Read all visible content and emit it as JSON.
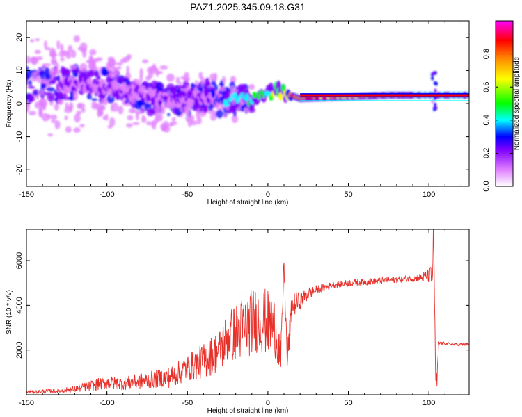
{
  "chart_data": [
    {
      "type": "heatmap",
      "title": "PAZ1.2025.345.09.18.G31",
      "xlabel": "Height of straight line (km)",
      "ylabel": "Frequency (Hz)",
      "xlim": [
        -150,
        125
      ],
      "ylim": [
        -25,
        25
      ],
      "xticks": [
        -150,
        -100,
        -50,
        0,
        50,
        100
      ],
      "yticks": [
        -20,
        -10,
        0,
        10,
        20
      ],
      "colorbar": {
        "label": "Normalized spectral amplitude",
        "range": [
          0,
          1
        ],
        "ticks": [
          "0.0",
          "0.2",
          "0.4",
          "0.6",
          "0.8"
        ],
        "colors": [
          "#ffffff",
          "#e080ff",
          "#8000ff",
          "#0000ff",
          "#00ffff",
          "#00ff00",
          "#ffff00",
          "#ff8000",
          "#ff0000",
          "#ff00ff"
        ]
      },
      "ridge": {
        "description_points": [
          {
            "x": -115,
            "f": 6,
            "amp": 0.25
          },
          {
            "x": -90,
            "f": 4,
            "amp": 0.2
          },
          {
            "x": -60,
            "f": 1,
            "amp": 0.2
          },
          {
            "x": -40,
            "f": 2,
            "amp": 0.25
          },
          {
            "x": -10,
            "f": 1,
            "amp": 0.55
          },
          {
            "x": 5,
            "f": 4,
            "amp": 0.6
          },
          {
            "x": 20,
            "f": 1.5,
            "amp": 0.9
          },
          {
            "x": 50,
            "f": 2,
            "amp": 0.75
          },
          {
            "x": 75,
            "f": 2.5,
            "amp": 0.85
          },
          {
            "x": 100,
            "f": 2.5,
            "amp": 0.95
          },
          {
            "x": 125,
            "f": 2.5,
            "amp": 0.95
          }
        ]
      }
    },
    {
      "type": "line",
      "title": "",
      "xlabel": "Height of straight line (km)",
      "ylabel": "SNR (10 * v/v)",
      "xlim": [
        -150,
        125
      ],
      "ylim": [
        0,
        7400
      ],
      "xticks": [
        -150,
        -100,
        -50,
        0,
        50,
        100
      ],
      "yticks": [
        2000,
        4000,
        6000
      ],
      "series": [
        {
          "name": "SNR",
          "color": "#e8302a",
          "x": [
            -150,
            -140,
            -130,
            -120,
            -110,
            -100,
            -90,
            -80,
            -70,
            -60,
            -50,
            -40,
            -30,
            -25,
            -20,
            -15,
            -10,
            -5,
            0,
            5,
            8,
            10,
            12,
            15,
            20,
            25,
            30,
            40,
            50,
            60,
            70,
            80,
            90,
            95,
            100,
            102,
            103,
            104,
            105,
            106,
            110,
            115,
            120,
            125
          ],
          "values": [
            120,
            150,
            180,
            250,
            400,
            550,
            500,
            600,
            700,
            800,
            1200,
            1500,
            2000,
            2600,
            2800,
            3000,
            3300,
            3400,
            3200,
            3000,
            1500,
            5900,
            1500,
            4000,
            4200,
            4500,
            4700,
            4900,
            5000,
            5050,
            5100,
            5150,
            5200,
            5250,
            5300,
            5200,
            7300,
            1000,
            500,
            2300,
            2300,
            2250,
            2250,
            2250
          ],
          "jitter": [
            60,
            80,
            100,
            150,
            250,
            300,
            300,
            350,
            400,
            500,
            600,
            800,
            1000,
            1200,
            1300,
            1500,
            1500,
            1500,
            1500,
            1400,
            800,
            400,
            800,
            600,
            400,
            300,
            200,
            150,
            150,
            150,
            150,
            150,
            150,
            200,
            300,
            800,
            1000,
            800,
            400,
            80,
            60,
            60,
            60,
            60
          ]
        }
      ]
    }
  ]
}
